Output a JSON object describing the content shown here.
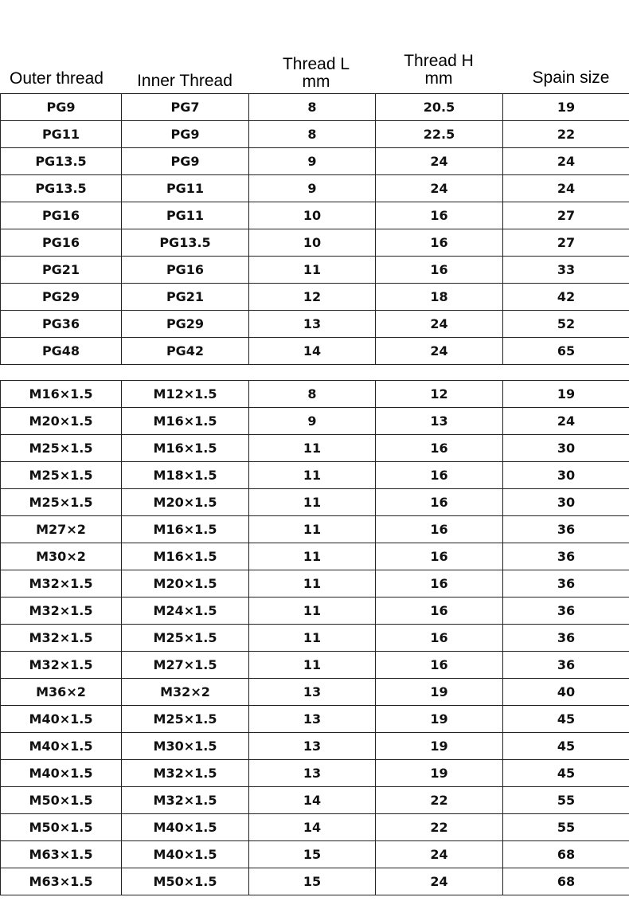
{
  "headers": {
    "outer": "Outer thread",
    "inner": "Inner Thread",
    "thread_l": [
      "Thread L",
      "mm"
    ],
    "thread_h": [
      "Thread H",
      "mm"
    ],
    "spain": "Spain size"
  },
  "pg_rows": [
    [
      "PG9",
      "PG7",
      "8",
      "20.5",
      "19"
    ],
    [
      "PG11",
      "PG9",
      "8",
      "22.5",
      "22"
    ],
    [
      "PG13.5",
      "PG9",
      "9",
      "24",
      "24"
    ],
    [
      "PG13.5",
      "PG11",
      "9",
      "24",
      "24"
    ],
    [
      "PG16",
      "PG11",
      "10",
      "16",
      "27"
    ],
    [
      "PG16",
      "PG13.5",
      "10",
      "16",
      "27"
    ],
    [
      "PG21",
      "PG16",
      "11",
      "16",
      "33"
    ],
    [
      "PG29",
      "PG21",
      "12",
      "18",
      "42"
    ],
    [
      "PG36",
      "PG29",
      "13",
      "24",
      "52"
    ],
    [
      "PG48",
      "PG42",
      "14",
      "24",
      "65"
    ]
  ],
  "m_rows": [
    [
      "M16×1.5",
      "M12×1.5",
      "8",
      "12",
      "19"
    ],
    [
      "M20×1.5",
      "M16×1.5",
      "9",
      "13",
      "24"
    ],
    [
      "M25×1.5",
      "M16×1.5",
      "11",
      "16",
      "30"
    ],
    [
      "M25×1.5",
      "M18×1.5",
      "11",
      "16",
      "30"
    ],
    [
      "M25×1.5",
      "M20×1.5",
      "11",
      "16",
      "30"
    ],
    [
      "M27×2",
      "M16×1.5",
      "11",
      "16",
      "36"
    ],
    [
      "M30×2",
      "M16×1.5",
      "11",
      "16",
      "36"
    ],
    [
      "M32×1.5",
      "M20×1.5",
      "11",
      "16",
      "36"
    ],
    [
      "M32×1.5",
      "M24×1.5",
      "11",
      "16",
      "36"
    ],
    [
      "M32×1.5",
      "M25×1.5",
      "11",
      "16",
      "36"
    ],
    [
      "M32×1.5",
      "M27×1.5",
      "11",
      "16",
      "36"
    ],
    [
      "M36×2",
      "M32×2",
      "13",
      "19",
      "40"
    ],
    [
      "M40×1.5",
      "M25×1.5",
      "13",
      "19",
      "45"
    ],
    [
      "M40×1.5",
      "M30×1.5",
      "13",
      "19",
      "45"
    ],
    [
      "M40×1.5",
      "M32×1.5",
      "13",
      "19",
      "45"
    ],
    [
      "M50×1.5",
      "M32×1.5",
      "14",
      "22",
      "55"
    ],
    [
      "M50×1.5",
      "M40×1.5",
      "14",
      "22",
      "55"
    ],
    [
      "M63×1.5",
      "M40×1.5",
      "15",
      "24",
      "68"
    ],
    [
      "M63×1.5",
      "M50×1.5",
      "15",
      "24",
      "68"
    ]
  ]
}
